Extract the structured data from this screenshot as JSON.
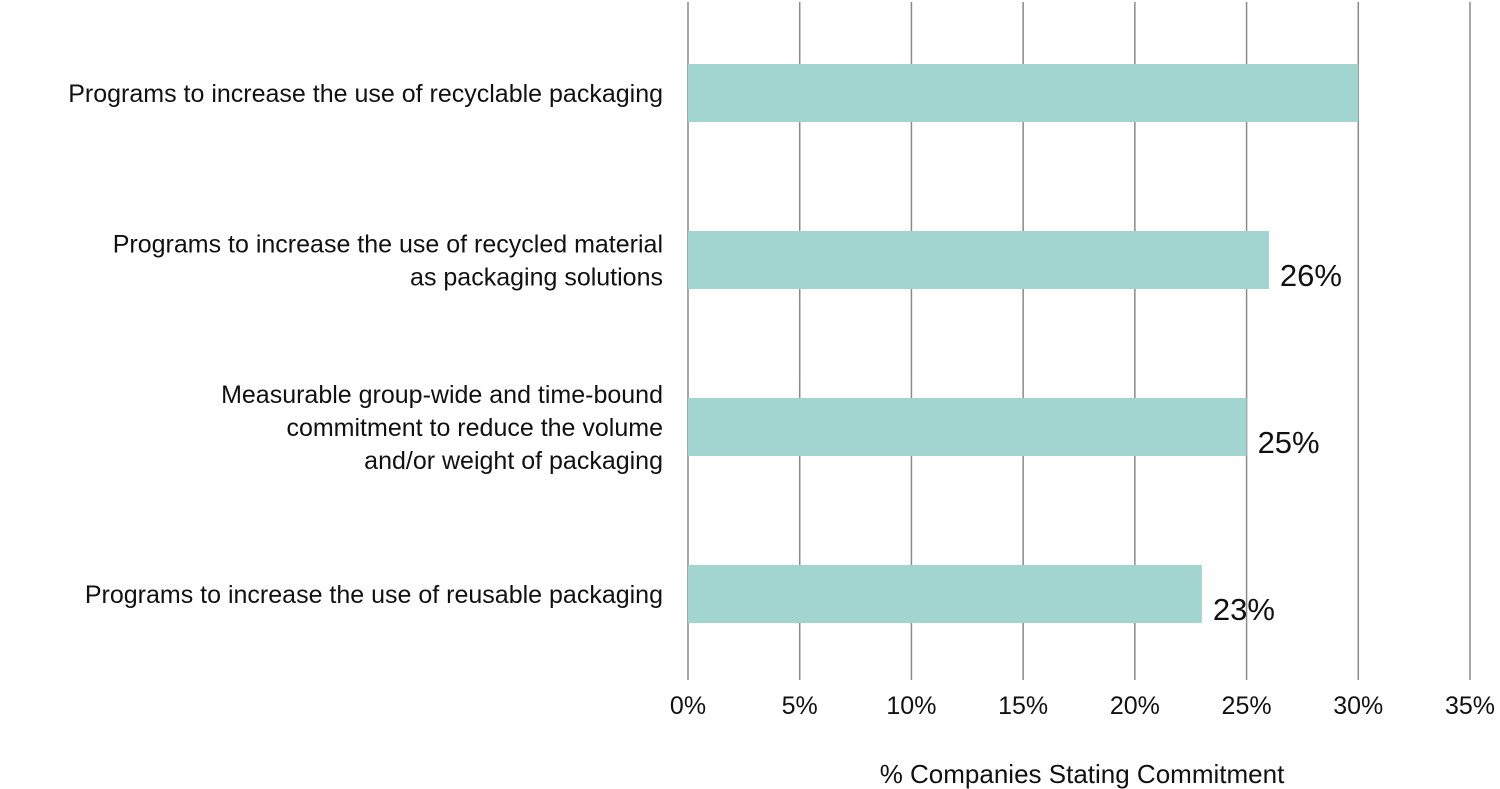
{
  "chart_data": {
    "type": "bar",
    "orientation": "horizontal",
    "categories": [
      [
        "Programs to increase the use of recyclable packaging"
      ],
      [
        "Programs to increase the use of recycled material",
        "as packaging solutions"
      ],
      [
        "Measurable group-wide and time-bound",
        "commitment to reduce the volume",
        "and/or weight of packaging"
      ],
      [
        "Programs to increase the use of reusable packaging"
      ]
    ],
    "values": [
      30,
      26,
      25,
      23
    ],
    "data_labels": [
      "",
      "26%",
      "25%",
      "23%"
    ],
    "xticks": [
      "0%",
      "5%",
      "10%",
      "15%",
      "20%",
      "25%",
      "30%",
      "35%"
    ],
    "xlim": [
      0,
      35
    ],
    "xlabel": "% Companies Stating Commitment",
    "grid": "vertical",
    "bar_color": "#a2d5cf"
  }
}
